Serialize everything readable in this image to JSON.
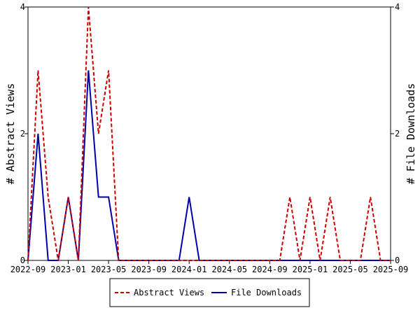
{
  "chart_data": {
    "type": "line",
    "title": "",
    "xlabel": "",
    "ylabel_left": "# Abstract Views",
    "ylabel_right": "# File Downloads",
    "ylim": [
      0,
      4
    ],
    "y_ticks": [
      "0",
      "2",
      "4"
    ],
    "x_ticks": [
      "2022-09",
      "2023-01",
      "2023-05",
      "2023-09",
      "2024-01",
      "2024-05",
      "2024-09",
      "2025-01",
      "2025-05",
      "2025-09"
    ],
    "x": [
      "2022-09",
      "2022-10",
      "2022-11",
      "2022-12",
      "2023-01",
      "2023-02",
      "2023-03",
      "2023-04",
      "2023-05",
      "2023-06",
      "2023-07",
      "2023-08",
      "2023-09",
      "2023-10",
      "2023-11",
      "2023-12",
      "2024-01",
      "2024-02",
      "2024-03",
      "2024-04",
      "2024-05",
      "2024-06",
      "2024-07",
      "2024-08",
      "2024-09",
      "2024-10",
      "2024-11",
      "2024-12",
      "2025-01",
      "2025-02",
      "2025-03",
      "2025-04",
      "2025-05",
      "2025-06",
      "2025-07",
      "2025-08",
      "2025-09"
    ],
    "series": [
      {
        "name": "Abstract Views",
        "color": "#cc0000",
        "dash": "dashed",
        "axis": "left",
        "values": [
          0,
          3,
          1,
          0,
          1,
          0,
          4,
          2,
          3,
          0,
          0,
          0,
          0,
          0,
          0,
          0,
          0,
          0,
          0,
          0,
          0,
          0,
          0,
          0,
          0,
          0,
          1,
          0,
          1,
          0,
          1,
          0,
          0,
          0,
          1,
          0,
          0
        ]
      },
      {
        "name": "File Downloads",
        "color": "#0000aa",
        "dash": "solid",
        "axis": "right",
        "values": [
          0,
          2,
          0,
          0,
          1,
          0,
          3,
          1,
          1,
          0,
          0,
          0,
          0,
          0,
          0,
          0,
          1,
          0,
          0,
          0,
          0,
          0,
          0,
          0,
          0,
          0,
          0,
          0,
          0,
          0,
          0,
          0,
          0,
          0,
          0,
          0,
          0
        ]
      }
    ],
    "grid": false,
    "legend_position": "bottom"
  }
}
